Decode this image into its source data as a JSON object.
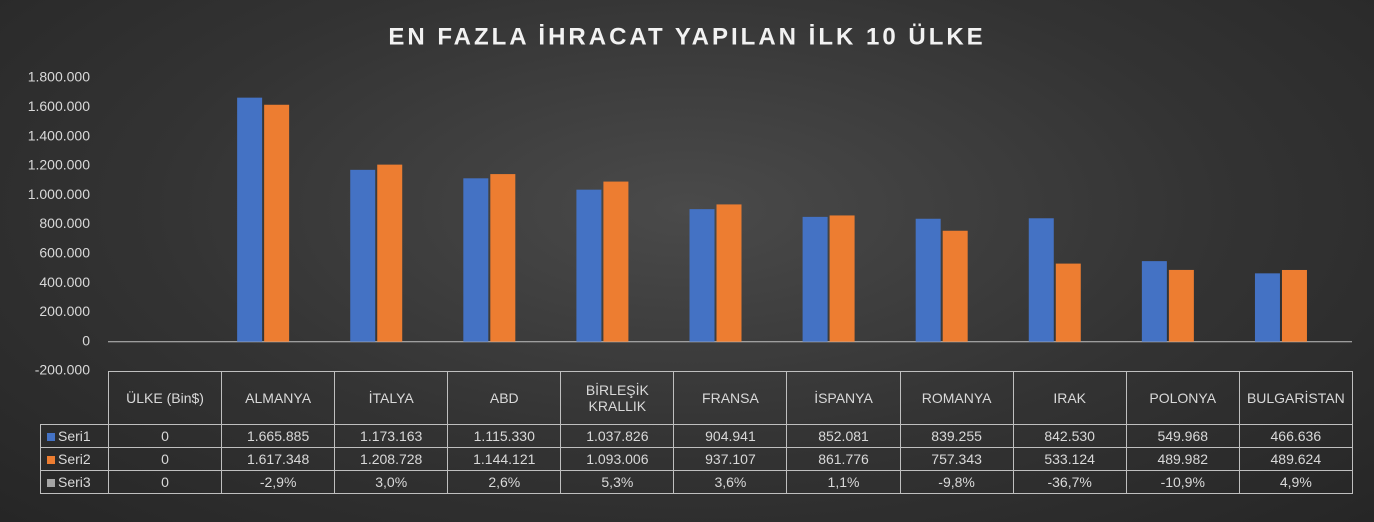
{
  "chart_data": {
    "type": "bar",
    "title": "EN FAZLA İHRACAT YAPILAN İLK 10 ÜLKE",
    "categories": [
      "ÜLKE (Bin$)",
      "ALMANYA",
      "İTALYA",
      "ABD",
      "BİRLEŞİK KRALLIK",
      "FRANSA",
      "İSPANYA",
      "ROMANYA",
      "IRAK",
      "POLONYA",
      "BULGARİSTAN"
    ],
    "series": [
      {
        "name": "Seri1",
        "color": "#4472c4",
        "values": [
          0,
          1665885,
          1173163,
          1115330,
          1037826,
          904941,
          852081,
          839255,
          842530,
          549968,
          466636
        ],
        "value_labels": [
          "0",
          "1.665.885",
          "1.173.163",
          "1.115.330",
          "1.037.826",
          "904.941",
          "852.081",
          "839.255",
          "842.530",
          "549.968",
          "466.636"
        ]
      },
      {
        "name": "Seri2",
        "color": "#ed7d31",
        "values": [
          0,
          1617348,
          1208728,
          1144121,
          1093006,
          937107,
          861776,
          757343,
          533124,
          489982,
          489624
        ],
        "value_labels": [
          "0",
          "1.617.348",
          "1.208.728",
          "1.144.121",
          "1.093.006",
          "937.107",
          "861.776",
          "757.343",
          "533.124",
          "489.982",
          "489.624"
        ]
      },
      {
        "name": "Seri3",
        "color": "#a5a5a5",
        "values": [
          0,
          -2.9,
          3.0,
          2.6,
          5.3,
          3.6,
          1.1,
          -9.8,
          -36.7,
          -10.9,
          4.9
        ],
        "value_labels": [
          "0",
          "-2,9%",
          "3,0%",
          "2,6%",
          "5,3%",
          "3,6%",
          "1,1%",
          "-9,8%",
          "-36,7%",
          "-10,9%",
          "4,9%"
        ]
      }
    ],
    "ylim": [
      -200000,
      1800000
    ],
    "yticks": [
      {
        "value": -200000,
        "label": "-200.000"
      },
      0,
      {
        "value": 200000,
        "label": "200.000"
      },
      {
        "value": 400000,
        "label": "400.000"
      },
      {
        "value": 600000,
        "label": "600.000"
      },
      {
        "value": 800000,
        "label": "800.000"
      },
      {
        "value": 1000000,
        "label": "1.000.000"
      },
      {
        "value": 1200000,
        "label": "1.200.000"
      },
      {
        "value": 1400000,
        "label": "1.400.000"
      },
      {
        "value": 1600000,
        "label": "1.600.000"
      },
      {
        "value": 1800000,
        "label": "1.800.000"
      }
    ],
    "grid": false
  }
}
